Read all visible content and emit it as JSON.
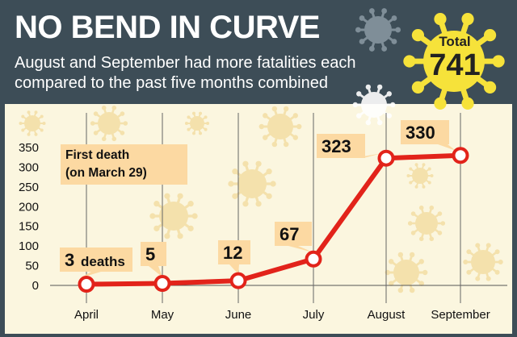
{
  "header": {
    "title": "NO BEND IN CURVE",
    "subtitle": "August and September had more fatalities each compared to the past five months combined"
  },
  "badge": {
    "label": "Total",
    "value": "741"
  },
  "annotation": {
    "line1": "First death",
    "line2": "(on March 29)"
  },
  "colors": {
    "header_bg": "#3d4d57",
    "plot_bg": "#fbf6df",
    "line": "#e2231a",
    "label_bg": "#fcd9a2",
    "badge": "#f6e23a",
    "virus": "#edc870"
  },
  "icons": [
    "virus-icon"
  ],
  "chart_data": {
    "type": "line",
    "categories": [
      "April",
      "May",
      "June",
      "July",
      "August",
      "September"
    ],
    "values": [
      3,
      5,
      12,
      67,
      323,
      330
    ],
    "data_labels": [
      "3",
      "5",
      "12",
      "67",
      "323",
      "330"
    ],
    "first_label_suffix": "deaths",
    "ylim": [
      0,
      350
    ],
    "yticks": [
      0,
      50,
      100,
      150,
      200,
      250,
      300,
      350
    ],
    "grid": "vertical lines at each month",
    "legend": "none"
  }
}
